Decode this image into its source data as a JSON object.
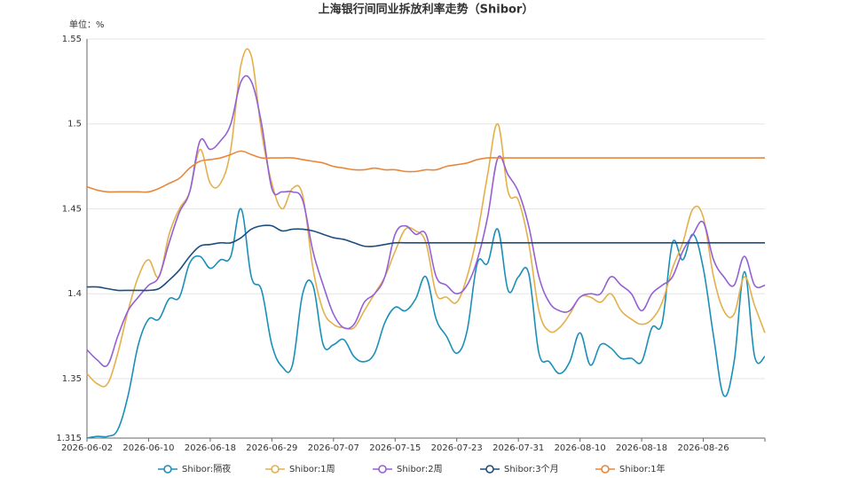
{
  "chart_data": {
    "type": "line",
    "title": "上海银行间同业拆放利率走势（Shibor）",
    "unit_label": "单位：%",
    "categories": [
      "2026-06-02",
      null,
      null,
      null,
      null,
      null,
      "2026-06-10",
      null,
      null,
      null,
      null,
      null,
      "2026-06-18",
      null,
      null,
      null,
      null,
      null,
      "2026-06-29",
      null,
      null,
      null,
      null,
      null,
      "2026-07-07",
      null,
      null,
      null,
      null,
      null,
      "2026-07-15",
      null,
      null,
      null,
      null,
      null,
      "2026-07-23",
      null,
      null,
      null,
      null,
      null,
      "2026-07-31",
      null,
      null,
      null,
      null,
      null,
      "2026-08-10",
      null,
      null,
      null,
      null,
      null,
      "2026-08-18",
      null,
      null,
      null,
      null,
      null,
      "2026-08-26",
      null,
      null,
      null,
      null,
      null,
      null
    ],
    "ylim": [
      1.315,
      1.55
    ],
    "yticks": [
      1.315,
      1.35,
      1.4,
      1.45,
      1.5,
      1.55
    ],
    "grid": true,
    "series": [
      {
        "name": "Shibor:隔夜",
        "color": "#1a8fb8",
        "values": [
          1.315,
          1.316,
          1.316,
          1.32,
          1.34,
          1.37,
          1.385,
          1.385,
          1.397,
          1.398,
          1.418,
          1.422,
          1.415,
          1.42,
          1.422,
          1.45,
          1.41,
          1.402,
          1.37,
          1.357,
          1.358,
          1.4,
          1.405,
          1.37,
          1.37,
          1.373,
          1.363,
          1.36,
          1.365,
          1.383,
          1.392,
          1.39,
          1.397,
          1.41,
          1.385,
          1.375,
          1.365,
          1.378,
          1.418,
          1.418,
          1.438,
          1.402,
          1.41,
          1.412,
          1.365,
          1.36,
          1.353,
          1.36,
          1.377,
          1.358,
          1.37,
          1.368,
          1.362,
          1.362,
          1.36,
          1.38,
          1.383,
          1.43,
          1.42,
          1.435,
          1.415,
          1.375,
          1.34,
          1.36,
          1.413,
          1.363,
          1.363
        ]
      },
      {
        "name": "Shibor:1周",
        "color": "#e3b04b",
        "values": [
          1.353,
          1.347,
          1.347,
          1.365,
          1.39,
          1.41,
          1.42,
          1.41,
          1.435,
          1.45,
          1.46,
          1.485,
          1.465,
          1.465,
          1.485,
          1.535,
          1.54,
          1.495,
          1.465,
          1.45,
          1.462,
          1.458,
          1.415,
          1.39,
          1.382,
          1.38,
          1.38,
          1.39,
          1.4,
          1.41,
          1.425,
          1.438,
          1.437,
          1.43,
          1.4,
          1.398,
          1.395,
          1.41,
          1.435,
          1.47,
          1.5,
          1.46,
          1.455,
          1.43,
          1.39,
          1.378,
          1.38,
          1.388,
          1.398,
          1.398,
          1.395,
          1.4,
          1.39,
          1.385,
          1.382,
          1.385,
          1.395,
          1.415,
          1.43,
          1.45,
          1.445,
          1.41,
          1.39,
          1.388,
          1.41,
          1.393,
          1.377
        ]
      },
      {
        "name": "Shibor:2周",
        "color": "#9460d6",
        "values": [
          1.367,
          1.361,
          1.358,
          1.375,
          1.39,
          1.398,
          1.405,
          1.41,
          1.43,
          1.448,
          1.46,
          1.49,
          1.485,
          1.49,
          1.5,
          1.525,
          1.525,
          1.5,
          1.462,
          1.46,
          1.46,
          1.455,
          1.425,
          1.405,
          1.388,
          1.38,
          1.382,
          1.395,
          1.4,
          1.41,
          1.435,
          1.44,
          1.435,
          1.435,
          1.41,
          1.405,
          1.4,
          1.405,
          1.42,
          1.445,
          1.48,
          1.47,
          1.46,
          1.44,
          1.41,
          1.395,
          1.39,
          1.39,
          1.398,
          1.4,
          1.4,
          1.41,
          1.405,
          1.4,
          1.39,
          1.4,
          1.405,
          1.41,
          1.425,
          1.435,
          1.442,
          1.42,
          1.41,
          1.405,
          1.422,
          1.405,
          1.405
        ]
      },
      {
        "name": "Shibor:3个月",
        "color": "#1d4e7e",
        "values": [
          1.404,
          1.404,
          1.403,
          1.402,
          1.402,
          1.402,
          1.402,
          1.403,
          1.408,
          1.414,
          1.422,
          1.428,
          1.429,
          1.43,
          1.43,
          1.433,
          1.438,
          1.44,
          1.44,
          1.437,
          1.438,
          1.438,
          1.437,
          1.435,
          1.433,
          1.432,
          1.43,
          1.428,
          1.428,
          1.429,
          1.43,
          1.43,
          1.43,
          1.43,
          1.43,
          1.43,
          1.43,
          1.43,
          1.43,
          1.43,
          1.43,
          1.43,
          1.43,
          1.43,
          1.43,
          1.43,
          1.43,
          1.43,
          1.43,
          1.43,
          1.43,
          1.43,
          1.43,
          1.43,
          1.43,
          1.43,
          1.43,
          1.43,
          1.43,
          1.43,
          1.43,
          1.43,
          1.43,
          1.43,
          1.43,
          1.43,
          1.43
        ]
      },
      {
        "name": "Shibor:1年",
        "color": "#e8873a",
        "values": [
          1.463,
          1.461,
          1.46,
          1.46,
          1.46,
          1.46,
          1.46,
          1.462,
          1.465,
          1.468,
          1.474,
          1.478,
          1.479,
          1.48,
          1.482,
          1.484,
          1.482,
          1.48,
          1.48,
          1.48,
          1.48,
          1.479,
          1.478,
          1.477,
          1.475,
          1.474,
          1.473,
          1.473,
          1.474,
          1.473,
          1.473,
          1.472,
          1.472,
          1.473,
          1.473,
          1.475,
          1.476,
          1.477,
          1.479,
          1.48,
          1.48,
          1.48,
          1.48,
          1.48,
          1.48,
          1.48,
          1.48,
          1.48,
          1.48,
          1.48,
          1.48,
          1.48,
          1.48,
          1.48,
          1.48,
          1.48,
          1.48,
          1.48,
          1.48,
          1.48,
          1.48,
          1.48,
          1.48,
          1.48,
          1.48,
          1.48,
          1.48
        ]
      }
    ]
  }
}
